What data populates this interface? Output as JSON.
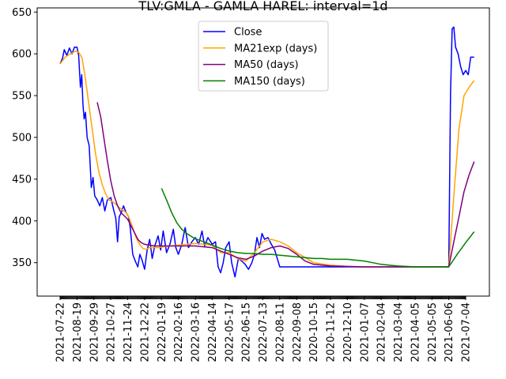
{
  "chart_data": {
    "type": "line",
    "title": "TLV:GMLA - GAMLA HAREL: interval=1d",
    "xlabel": "",
    "ylabel": "",
    "ylim": [
      310,
      655
    ],
    "yticks": [
      350,
      400,
      450,
      500,
      550,
      600,
      650
    ],
    "grid": false,
    "legend_position": "top-center",
    "x_tick_labels": [
      "2021-07-22",
      "2021-08-19",
      "2021-09-29",
      "2021-10-27",
      "2021-11-24",
      "2021-12-22",
      "2022-01-19",
      "2022-02-16",
      "2022-03-16",
      "2022-04-14",
      "2022-05-17",
      "2022-06-15",
      "2022-07-13",
      "2022-08-11",
      "2022-09-08",
      "2020-10-15",
      "2020-11-12",
      "2020-12-10",
      "2021-01-07",
      "2021-02-04",
      "2021-03-04",
      "2021-04-05",
      "2021-05-05",
      "2021-06-06",
      "2021-07-04"
    ],
    "series": [
      {
        "name": "Close",
        "color": "#0000ff",
        "points": [
          [
            0,
            588
          ],
          [
            0.15,
            595
          ],
          [
            0.25,
            605
          ],
          [
            0.4,
            598
          ],
          [
            0.55,
            607
          ],
          [
            0.7,
            600
          ],
          [
            0.85,
            608
          ],
          [
            1.0,
            608
          ],
          [
            1.1,
            598
          ],
          [
            1.2,
            560
          ],
          [
            1.28,
            575
          ],
          [
            1.35,
            540
          ],
          [
            1.42,
            522
          ],
          [
            1.5,
            530
          ],
          [
            1.6,
            500
          ],
          [
            1.72,
            490
          ],
          [
            1.85,
            440
          ],
          [
            1.95,
            452
          ],
          [
            2.05,
            430
          ],
          [
            2.2,
            425
          ],
          [
            2.35,
            418
          ],
          [
            2.5,
            428
          ],
          [
            2.65,
            412
          ],
          [
            2.8,
            425
          ],
          [
            3.0,
            428
          ],
          [
            3.15,
            415
          ],
          [
            3.3,
            403
          ],
          [
            3.4,
            375
          ],
          [
            3.5,
            405
          ],
          [
            3.62,
            410
          ],
          [
            3.75,
            418
          ],
          [
            3.9,
            410
          ],
          [
            4.05,
            405
          ],
          [
            4.15,
            392
          ],
          [
            4.3,
            360
          ],
          [
            4.45,
            352
          ],
          [
            4.6,
            345
          ],
          [
            4.72,
            360
          ],
          [
            4.85,
            353
          ],
          [
            5.0,
            342
          ],
          [
            5.15,
            365
          ],
          [
            5.3,
            378
          ],
          [
            5.45,
            355
          ],
          [
            5.6,
            370
          ],
          [
            5.8,
            382
          ],
          [
            5.95,
            365
          ],
          [
            6.1,
            388
          ],
          [
            6.3,
            362
          ],
          [
            6.5,
            372
          ],
          [
            6.7,
            390
          ],
          [
            6.85,
            368
          ],
          [
            7.0,
            360
          ],
          [
            7.2,
            372
          ],
          [
            7.4,
            392
          ],
          [
            7.6,
            368
          ],
          [
            7.8,
            375
          ],
          [
            8.0,
            380
          ],
          [
            8.2,
            372
          ],
          [
            8.4,
            388
          ],
          [
            8.55,
            370
          ],
          [
            8.75,
            380
          ],
          [
            9.0,
            372
          ],
          [
            9.2,
            375
          ],
          [
            9.35,
            345
          ],
          [
            9.5,
            338
          ],
          [
            9.65,
            350
          ],
          [
            9.8,
            368
          ],
          [
            10.0,
            375
          ],
          [
            10.15,
            350
          ],
          [
            10.35,
            333
          ],
          [
            10.55,
            355
          ],
          [
            10.75,
            352
          ],
          [
            10.95,
            348
          ],
          [
            11.15,
            342
          ],
          [
            11.35,
            350
          ],
          [
            11.5,
            360
          ],
          [
            11.65,
            380
          ],
          [
            11.8,
            368
          ],
          [
            11.95,
            385
          ],
          [
            12.1,
            378
          ],
          [
            12.3,
            380
          ],
          [
            12.5,
            372
          ],
          [
            12.7,
            365
          ],
          [
            12.85,
            355
          ],
          [
            13.0,
            345
          ],
          [
            13.5,
            345
          ],
          [
            14.5,
            345
          ],
          [
            16.0,
            345
          ],
          [
            18.0,
            345
          ],
          [
            20.0,
            345
          ],
          [
            22.0,
            345
          ],
          [
            23.0,
            345
          ],
          [
            23.1,
            550
          ],
          [
            23.2,
            630
          ],
          [
            23.3,
            632
          ],
          [
            23.4,
            608
          ],
          [
            23.55,
            600
          ],
          [
            23.7,
            585
          ],
          [
            23.85,
            575
          ],
          [
            24.0,
            580
          ],
          [
            24.15,
            575
          ],
          [
            24.3,
            596
          ],
          [
            24.5,
            596
          ]
        ]
      },
      {
        "name": "MA21exp (days)",
        "color": "#ffa500",
        "points": [
          [
            0,
            588
          ],
          [
            0.3,
            596
          ],
          [
            0.6,
            600
          ],
          [
            0.9,
            603
          ],
          [
            1.1,
            602
          ],
          [
            1.3,
            595
          ],
          [
            1.5,
            570
          ],
          [
            1.7,
            540
          ],
          [
            1.9,
            510
          ],
          [
            2.1,
            480
          ],
          [
            2.3,
            458
          ],
          [
            2.5,
            443
          ],
          [
            2.7,
            432
          ],
          [
            2.9,
            425
          ],
          [
            3.1,
            423
          ],
          [
            3.3,
            420
          ],
          [
            3.5,
            416
          ],
          [
            3.7,
            413
          ],
          [
            3.9,
            410
          ],
          [
            4.1,
            403
          ],
          [
            4.3,
            392
          ],
          [
            4.5,
            380
          ],
          [
            4.7,
            372
          ],
          [
            4.9,
            367
          ],
          [
            5.1,
            366
          ],
          [
            5.3,
            368
          ],
          [
            5.5,
            368
          ],
          [
            5.8,
            368
          ],
          [
            6.1,
            369
          ],
          [
            6.5,
            370
          ],
          [
            7.0,
            371
          ],
          [
            7.5,
            372
          ],
          [
            8.0,
            373
          ],
          [
            8.5,
            372
          ],
          [
            9.0,
            371
          ],
          [
            9.5,
            362
          ],
          [
            10.0,
            362
          ],
          [
            10.5,
            355
          ],
          [
            11.0,
            352
          ],
          [
            11.5,
            362
          ],
          [
            12.0,
            375
          ],
          [
            12.5,
            378
          ],
          [
            13.0,
            375
          ],
          [
            13.5,
            370
          ],
          [
            14.0,
            362
          ],
          [
            14.5,
            356
          ],
          [
            15.0,
            350
          ],
          [
            16.0,
            347
          ],
          [
            17.0,
            345.5
          ],
          [
            18.0,
            345
          ],
          [
            20.0,
            345
          ],
          [
            22.0,
            345
          ],
          [
            23.0,
            345
          ],
          [
            23.3,
            430
          ],
          [
            23.6,
            510
          ],
          [
            23.9,
            550
          ],
          [
            24.2,
            560
          ],
          [
            24.5,
            568
          ]
        ]
      },
      {
        "name": "MA50 (days)",
        "color": "#800080",
        "points": [
          [
            2.2,
            542
          ],
          [
            2.4,
            525
          ],
          [
            2.6,
            498
          ],
          [
            2.8,
            472
          ],
          [
            3.0,
            448
          ],
          [
            3.2,
            430
          ],
          [
            3.4,
            418
          ],
          [
            3.6,
            410
          ],
          [
            3.8,
            406
          ],
          [
            4.0,
            402
          ],
          [
            4.2,
            394
          ],
          [
            4.4,
            386
          ],
          [
            4.6,
            378
          ],
          [
            4.8,
            374
          ],
          [
            5.0,
            372
          ],
          [
            5.3,
            371
          ],
          [
            5.6,
            370
          ],
          [
            6.0,
            370
          ],
          [
            6.5,
            370
          ],
          [
            7.0,
            370
          ],
          [
            7.5,
            370
          ],
          [
            8.0,
            370
          ],
          [
            8.5,
            369
          ],
          [
            9.0,
            368
          ],
          [
            9.5,
            364
          ],
          [
            10.0,
            360
          ],
          [
            10.5,
            356
          ],
          [
            11.0,
            354
          ],
          [
            11.5,
            358
          ],
          [
            12.0,
            364
          ],
          [
            12.5,
            368
          ],
          [
            13.0,
            370
          ],
          [
            13.5,
            367
          ],
          [
            14.0,
            360
          ],
          [
            14.5,
            352
          ],
          [
            15.0,
            348
          ],
          [
            16.0,
            346
          ],
          [
            18.0,
            345
          ],
          [
            20.0,
            345
          ],
          [
            22.0,
            345
          ],
          [
            23.0,
            345
          ],
          [
            23.3,
            375
          ],
          [
            23.6,
            405
          ],
          [
            23.9,
            435
          ],
          [
            24.2,
            455
          ],
          [
            24.5,
            471
          ]
        ]
      },
      {
        "name": "MA150 (days)",
        "color": "#008000",
        "points": [
          [
            6.0,
            439
          ],
          [
            6.3,
            425
          ],
          [
            6.6,
            410
          ],
          [
            6.9,
            398
          ],
          [
            7.2,
            390
          ],
          [
            7.5,
            385
          ],
          [
            7.8,
            381
          ],
          [
            8.1,
            378
          ],
          [
            8.5,
            375
          ],
          [
            9.0,
            371
          ],
          [
            9.5,
            367
          ],
          [
            10.0,
            364
          ],
          [
            10.5,
            362
          ],
          [
            11.0,
            361
          ],
          [
            11.5,
            361
          ],
          [
            12.0,
            360
          ],
          [
            12.5,
            360
          ],
          [
            13.0,
            359
          ],
          [
            13.5,
            358
          ],
          [
            14.0,
            357
          ],
          [
            14.5,
            356
          ],
          [
            15.0,
            355
          ],
          [
            15.5,
            355
          ],
          [
            16.0,
            354
          ],
          [
            16.5,
            354
          ],
          [
            17.0,
            354
          ],
          [
            17.5,
            353
          ],
          [
            18.0,
            352
          ],
          [
            18.5,
            350
          ],
          [
            19.0,
            348
          ],
          [
            19.5,
            347
          ],
          [
            20.0,
            346
          ],
          [
            20.5,
            345.5
          ],
          [
            21.0,
            345
          ],
          [
            22.0,
            345
          ],
          [
            23.0,
            345
          ],
          [
            23.5,
            360
          ],
          [
            24.0,
            374
          ],
          [
            24.5,
            387
          ]
        ]
      }
    ]
  }
}
